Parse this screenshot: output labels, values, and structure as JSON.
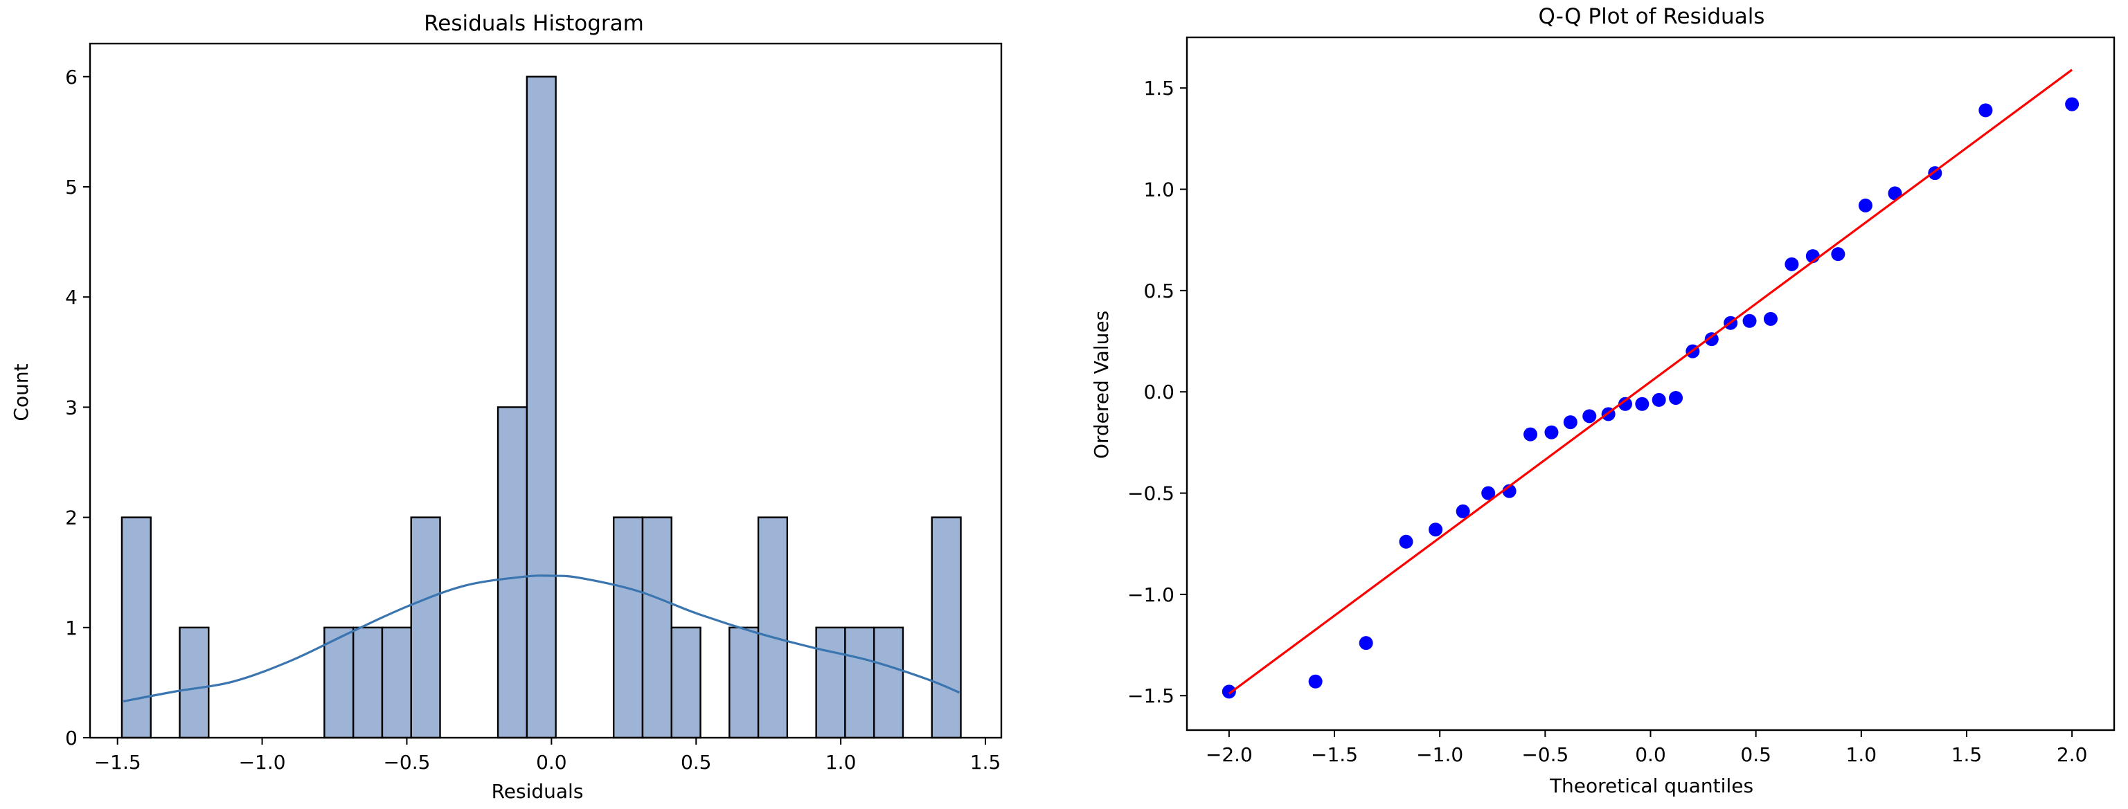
{
  "figure": {
    "background": "#ffffff"
  },
  "chart_data": [
    {
      "type": "bar",
      "subtype": "histogram_with_kde",
      "title": "Residuals Histogram",
      "xlabel": "Residuals",
      "ylabel": "Count",
      "xlim": [
        -1.595,
        1.555
      ],
      "ylim": [
        0,
        6.3
      ],
      "xticks": [
        -1.5,
        -1.0,
        -0.5,
        0.0,
        0.5,
        1.0,
        1.5
      ],
      "xtick_labels": [
        "−1.5",
        "−1.0",
        "−0.5",
        "0.0",
        "0.5",
        "1.0",
        "1.5"
      ],
      "yticks": [
        0,
        1,
        2,
        3,
        4,
        5,
        6
      ],
      "ytick_labels": [
        "0",
        "1",
        "2",
        "3",
        "4",
        "5",
        "6"
      ],
      "bin_width": 0.1,
      "bins": [
        {
          "x0": -1.485,
          "x1": -1.385,
          "count": 2
        },
        {
          "x0": -1.285,
          "x1": -1.185,
          "count": 1
        },
        {
          "x0": -0.785,
          "x1": -0.685,
          "count": 1
        },
        {
          "x0": -0.685,
          "x1": -0.585,
          "count": 1
        },
        {
          "x0": -0.585,
          "x1": -0.485,
          "count": 1
        },
        {
          "x0": -0.485,
          "x1": -0.385,
          "count": 2
        },
        {
          "x0": -0.185,
          "x1": -0.085,
          "count": 3
        },
        {
          "x0": -0.085,
          "x1": 0.015,
          "count": 6
        },
        {
          "x0": 0.215,
          "x1": 0.315,
          "count": 2
        },
        {
          "x0": 0.315,
          "x1": 0.415,
          "count": 2
        },
        {
          "x0": 0.415,
          "x1": 0.515,
          "count": 1
        },
        {
          "x0": 0.615,
          "x1": 0.715,
          "count": 1
        },
        {
          "x0": 0.715,
          "x1": 0.815,
          "count": 2
        },
        {
          "x0": 0.915,
          "x1": 1.015,
          "count": 1
        },
        {
          "x0": 1.015,
          "x1": 1.115,
          "count": 1
        },
        {
          "x0": 1.115,
          "x1": 1.215,
          "count": 1
        },
        {
          "x0": 1.315,
          "x1": 1.415,
          "count": 2
        }
      ],
      "kde": {
        "x": [
          -1.48,
          -1.3,
          -1.1,
          -0.9,
          -0.7,
          -0.5,
          -0.3,
          -0.1,
          0.0,
          0.1,
          0.3,
          0.5,
          0.7,
          0.9,
          1.1,
          1.3,
          1.41
        ],
        "y": [
          0.33,
          0.42,
          0.51,
          0.7,
          0.95,
          1.19,
          1.38,
          1.46,
          1.47,
          1.45,
          1.33,
          1.13,
          0.96,
          0.82,
          0.7,
          0.53,
          0.41
        ]
      },
      "colors": {
        "bar_fill": "#9db4d6",
        "bar_edge": "#000000",
        "kde": "#3b75af"
      }
    },
    {
      "type": "scatter",
      "subtype": "qq_plot",
      "title": "Q-Q Plot of Residuals",
      "xlabel": "Theoretical quantiles",
      "ylabel": "Ordered Values",
      "xlim": [
        -2.2,
        2.2
      ],
      "ylim": [
        -1.67,
        1.75
      ],
      "xticks": [
        -2.0,
        -1.5,
        -1.0,
        -0.5,
        0.0,
        0.5,
        1.0,
        1.5,
        2.0
      ],
      "xtick_labels": [
        "−2.0",
        "−1.5",
        "−1.0",
        "−0.5",
        "0.0",
        "0.5",
        "1.0",
        "1.5",
        "2.0"
      ],
      "yticks": [
        -1.5,
        -1.0,
        -0.5,
        0.0,
        0.5,
        1.0,
        1.5
      ],
      "ytick_labels": [
        "−1.5",
        "−1.0",
        "−0.5",
        "0.0",
        "0.5",
        "1.0",
        "1.5"
      ],
      "points": {
        "x": [
          -2.0,
          -1.59,
          -1.35,
          -1.16,
          -1.02,
          -0.89,
          -0.77,
          -0.67,
          -0.57,
          -0.47,
          -0.38,
          -0.29,
          -0.2,
          -0.12,
          -0.04,
          0.04,
          0.12,
          0.2,
          0.29,
          0.38,
          0.47,
          0.57,
          0.67,
          0.77,
          0.89,
          1.02,
          1.16,
          1.35,
          1.59,
          2.0
        ],
        "y": [
          -1.48,
          -1.43,
          -1.24,
          -0.74,
          -0.68,
          -0.59,
          -0.5,
          -0.49,
          -0.21,
          -0.2,
          -0.15,
          -0.12,
          -0.11,
          -0.06,
          -0.06,
          -0.04,
          -0.03,
          0.2,
          0.26,
          0.34,
          0.35,
          0.36,
          0.63,
          0.67,
          0.68,
          0.92,
          0.98,
          1.08,
          1.39,
          1.42
        ]
      },
      "fit_line": {
        "x": [
          -2.0,
          2.0
        ],
        "y": [
          -1.49,
          1.59
        ]
      },
      "colors": {
        "points": "#0000ff",
        "line": "#ff0000"
      }
    }
  ]
}
